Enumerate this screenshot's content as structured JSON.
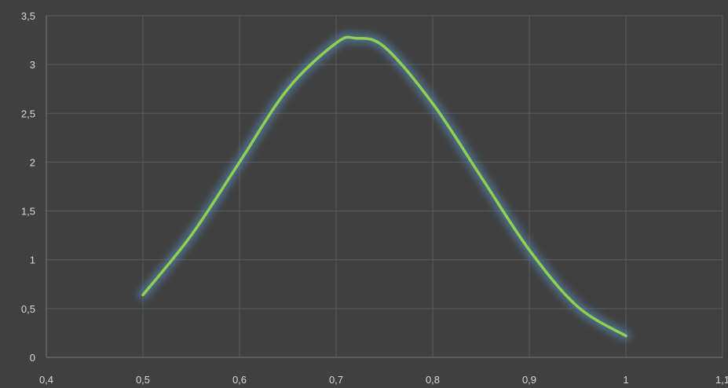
{
  "chart_data": {
    "type": "line",
    "title": "",
    "xlabel": "",
    "ylabel": "",
    "xlim": [
      0.4,
      1.1
    ],
    "ylim": [
      0,
      3.5
    ],
    "x_ticks": [
      "0,4",
      "0,5",
      "0,6",
      "0,7",
      "0,8",
      "0,9",
      "1",
      "1,1"
    ],
    "y_ticks": [
      "0",
      "0,5",
      "1",
      "1,5",
      "2",
      "2,5",
      "3",
      "3,5"
    ],
    "grid": true,
    "legend": "none",
    "line_color": "#8fd14f",
    "glow_color": "#5b9bd5",
    "background_color": "#404040",
    "series": [
      {
        "x": [
          0.5,
          0.55,
          0.6,
          0.65,
          0.7,
          0.72,
          0.75,
          0.8,
          0.85,
          0.9,
          0.95,
          1.0
        ],
        "values": [
          0.64,
          1.25,
          2.0,
          2.75,
          3.22,
          3.27,
          3.18,
          2.6,
          1.85,
          1.1,
          0.52,
          0.22
        ]
      }
    ]
  }
}
